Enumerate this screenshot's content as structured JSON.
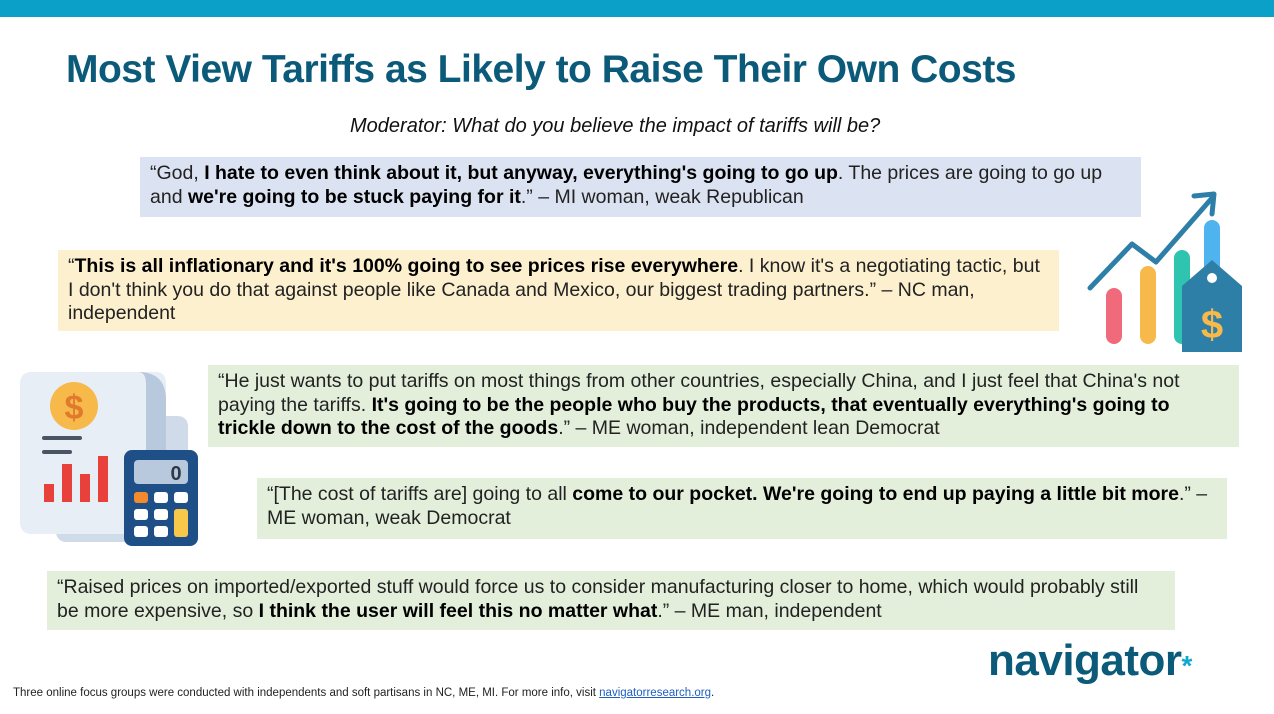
{
  "title": "Most View Tariffs as Likely to Raise Their Own Costs",
  "moderator": "Moderator: What do you believe the impact of tariffs will be?",
  "quotes": [
    {
      "open": "“God, ",
      "bold1": "I hate to even think about it, but anyway, everything's going to go up",
      "mid": ". The prices are going to go up and ",
      "bold2": "we're going to be stuck paying for it",
      "close": ".” – MI woman, weak Republican"
    },
    {
      "open": "“",
      "bold1": "This is all inflationary and it's 100% going to see prices rise everywhere",
      "close": ". I know it's a negotiating tactic, but I don't think you do that against people like Canada and Mexico, our biggest trading partners.” – NC man, independent"
    },
    {
      "open": "“He just wants to put tariffs on most things from other countries, especially China, and I just feel that China's not paying the tariffs. ",
      "bold1": "It's going to be the people who buy the products, that eventually everything's going to trickle down to the cost of the goods",
      "close": ".” – ME woman, independent lean Democrat"
    },
    {
      "open": "“[The cost of tariffs are] going to all ",
      "bold1": "come to our pocket. We're going to end up paying a little bit more",
      "close": ".” – ME woman, weak Democrat"
    },
    {
      "open": "“Raised prices on imported/exported stuff would force us to consider manufacturing closer to home, which would probably still be more expensive, so ",
      "bold1": "I think the user will feel this no matter what",
      "close": ".” – ME man, independent"
    }
  ],
  "logo": {
    "text": "navigator",
    "mark": "*"
  },
  "footer": {
    "text": "Three online focus groups were conducted with independents and soft partisans in NC, ME, MI. For more info, visit ",
    "link": "navigatorresearch.org",
    "end": "."
  },
  "icons": {
    "chart": "rising-bar-chart-price-tag-icon",
    "calc": "invoice-calculator-icon",
    "calc_display": "0",
    "dollar": "$"
  },
  "colors": {
    "accent": "#0aa0c8",
    "title": "#0b5a7a",
    "blue_box": "#dbe2f1",
    "yellow_box": "#fdf0cf",
    "green_box": "#e3efdb"
  }
}
